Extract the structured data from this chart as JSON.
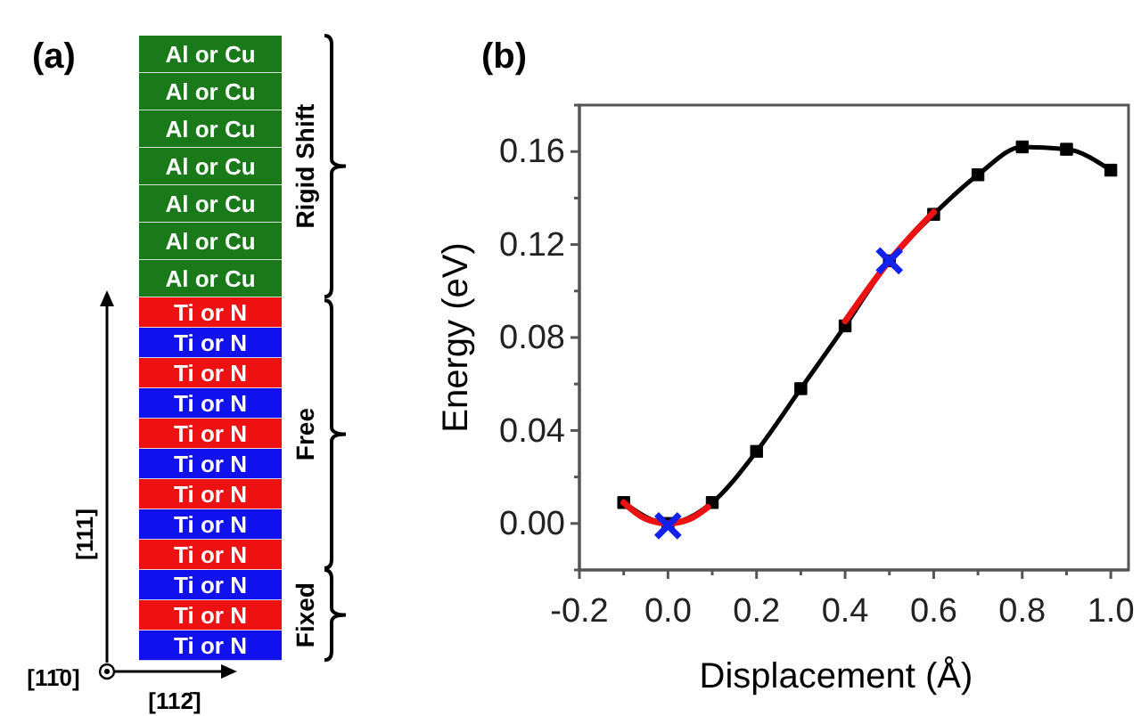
{
  "chart_data": [
    {
      "type": "other",
      "title": "(a)",
      "annotations": [
        "Al or Cu",
        "Al or Cu",
        "Al or Cu",
        "Al or Cu",
        "Al or Cu",
        "Al or Cu",
        "Al or Cu",
        "Ti or N",
        "Ti or N",
        "Ti or N",
        "Ti or N",
        "Ti or N",
        "Ti or N",
        "Ti or N",
        "Ti or N",
        "Ti or N",
        "Ti or N",
        "Ti or N",
        "Ti or N",
        "Rigid Shift",
        "Free",
        "Fixed",
        "[111]",
        "[11̄0]",
        "[112̄]"
      ],
      "colors": [
        "#1a7a1a",
        "#1a7a1a",
        "#1a7a1a",
        "#1a7a1a",
        "#1a7a1a",
        "#1a7a1a",
        "#1a7a1a",
        "#ee1111",
        "#1111ee",
        "#ee1111",
        "#1111ee",
        "#ee1111",
        "#1111ee",
        "#ee1111",
        "#1111ee",
        "#ee1111",
        "#1111ee",
        "#ee1111",
        "#1111ee"
      ]
    },
    {
      "type": "line",
      "title": "(b)",
      "xlabel": "Displacement (Å)",
      "ylabel": "Energy (eV)",
      "xlim": [
        -0.2,
        1.04
      ],
      "ylim": [
        -0.02,
        0.18
      ],
      "xticks": [
        -0.2,
        {
          "value": -0.1,
          "label": null
        },
        {
          "value": 0,
          "label": "0.0"
        },
        {
          "value": 0.1,
          "label": null
        },
        0.2,
        {
          "value": 0.3,
          "label": null
        },
        0.4,
        {
          "value": 0.5,
          "label": null
        },
        0.6,
        {
          "value": 0.7,
          "label": null
        },
        0.8,
        {
          "value": 0.9,
          "label": null
        },
        {
          "value": 1,
          "label": "1.0"
        }
      ],
      "yticks": [
        {
          "value": -0.02,
          "label": null
        },
        {
          "value": 0,
          "label": "0.00"
        },
        {
          "value": 0.02,
          "label": null
        },
        0.04,
        {
          "value": 0.06,
          "label": null
        },
        0.08,
        {
          "value": 0.1,
          "label": null
        },
        0.12,
        {
          "value": 0.14,
          "label": null
        },
        0.16,
        {
          "value": 0.18,
          "label": null
        }
      ],
      "grid": false,
      "series": [
        {
          "color": "#000000",
          "marker": "square",
          "x": [
            -0.1,
            0,
            0.1,
            0.2,
            0.3,
            0.4,
            0.5,
            0.6,
            0.7,
            0.8,
            0.9,
            1.0
          ],
          "values": [
            0.009,
            0.0,
            0.009,
            0.031,
            0.058,
            0.085,
            0.113,
            0.133,
            0.15,
            0.162,
            0.161,
            0.152
          ]
        },
        {
          "color": "#ee1111",
          "marker": "none",
          "x": [
            -0.1,
            -0.05,
            0,
            0.05,
            0.09,
            0.25,
            0.4,
            0.5,
            0.6
          ],
          "values": [
            0.009,
            0.002,
            0.0,
            0.002,
            0.007,
            null,
            0.087,
            0.113,
            0.134
          ]
        },
        {
          "type": "scatter",
          "color": "#1122ee",
          "marker": "cross",
          "x": [
            0,
            0.5
          ],
          "values": [
            -0.001,
            0.113
          ]
        }
      ]
    }
  ]
}
